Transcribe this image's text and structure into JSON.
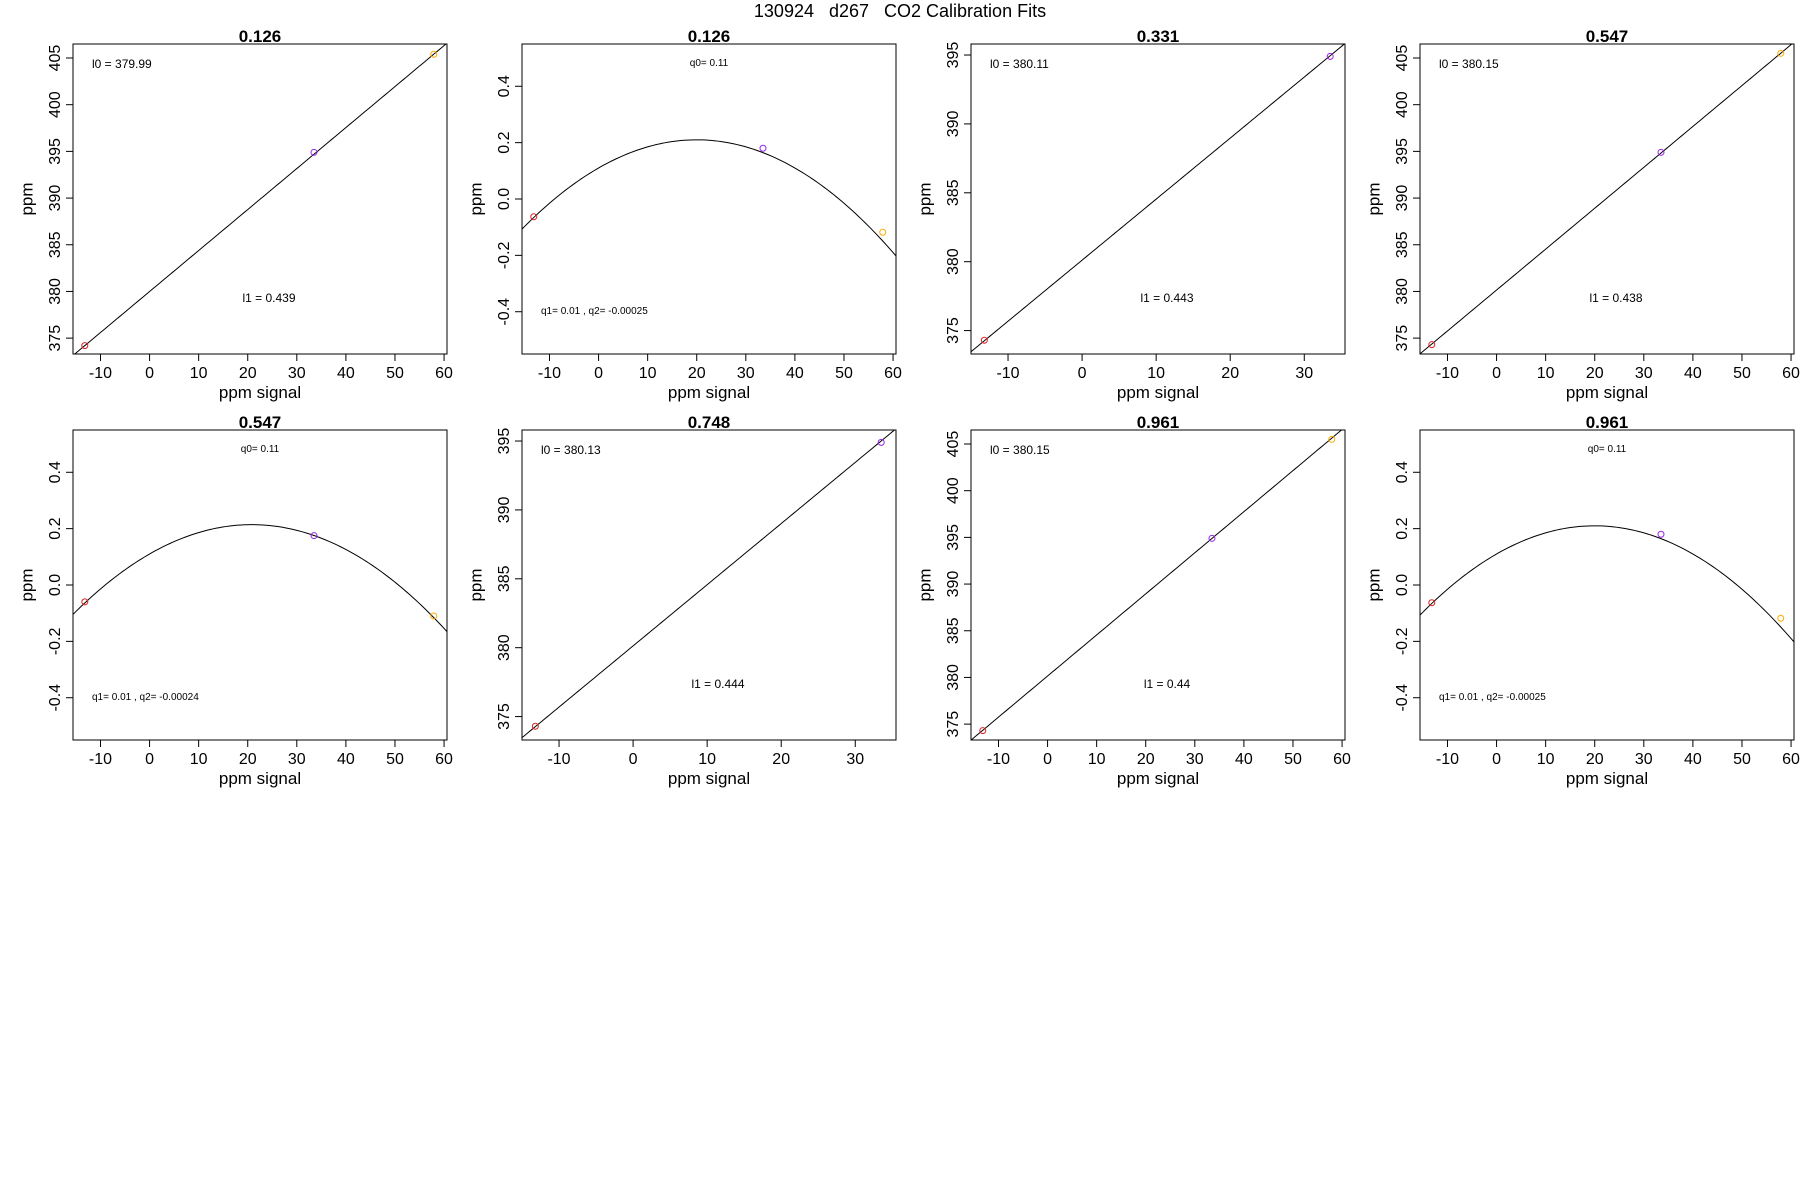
{
  "page": {
    "title": "130924   d267   CO2 Calibration Fits"
  },
  "colors": {
    "red": "#dd2222",
    "purple": "#9922ee",
    "orange": "#ffaa00",
    "line": "#000000"
  },
  "chart_data": [
    {
      "type": "scatter",
      "title": "0.126",
      "xlabel": "ppm signal",
      "ylabel": "ppm",
      "xlim": [
        -15.6,
        60.6
      ],
      "ylim": [
        373.3,
        406.5
      ],
      "xticks": [
        "-10",
        "0",
        "10",
        "20",
        "30",
        "40",
        "50",
        "60"
      ],
      "yticks": [
        "375",
        "380",
        "385",
        "390",
        "395",
        "400",
        "405"
      ],
      "fit": {
        "kind": "linear",
        "b0": 379.99,
        "b1": 0.439
      },
      "annotations": [
        "l0 =  379.99",
        "l1 =  0.439"
      ],
      "points": [
        {
          "x": -13.2,
          "y": 374.2,
          "color": "red"
        },
        {
          "x": 33.5,
          "y": 394.9,
          "color": "purple"
        },
        {
          "x": 57.9,
          "y": 405.4,
          "color": "orange"
        }
      ]
    },
    {
      "type": "scatter",
      "title": "0.126",
      "xlabel": "ppm signal",
      "ylabel": "ppm",
      "xlim": [
        -15.6,
        60.6
      ],
      "ylim": [
        -0.55,
        0.55
      ],
      "xticks": [
        "-10",
        "0",
        "10",
        "20",
        "30",
        "40",
        "50",
        "60"
      ],
      "yticks": [
        "-0.4",
        "-0.2",
        "0.0",
        "0.2",
        "0.4"
      ],
      "fit": {
        "kind": "quadratic",
        "q0": 0.11,
        "q1": 0.01,
        "q2": -0.00025
      },
      "annotations": [
        "q0= 0.11",
        "q1= 0.01 , q2= -0.00025"
      ],
      "points": [
        {
          "x": -13.2,
          "y": -0.063,
          "color": "red"
        },
        {
          "x": 33.5,
          "y": 0.18,
          "color": "purple"
        },
        {
          "x": 57.9,
          "y": -0.118,
          "color": "orange"
        }
      ]
    },
    {
      "type": "scatter",
      "title": "0.331",
      "xlabel": "ppm signal",
      "ylabel": "ppm",
      "xlim": [
        -15.0,
        35.5
      ],
      "ylim": [
        373.3,
        395.8
      ],
      "xticks": [
        "-10",
        "0",
        "10",
        "20",
        "30"
      ],
      "yticks": [
        "375",
        "380",
        "385",
        "390",
        "395"
      ],
      "fit": {
        "kind": "linear",
        "b0": 380.11,
        "b1": 0.443
      },
      "annotations": [
        "l0 =  380.11",
        "l1 =  0.443"
      ],
      "points": [
        {
          "x": -13.2,
          "y": 374.3,
          "color": "red"
        },
        {
          "x": 33.5,
          "y": 394.9,
          "color": "purple"
        }
      ]
    },
    {
      "type": "scatter",
      "title": "0.547",
      "xlabel": "ppm signal",
      "ylabel": "ppm",
      "xlim": [
        -15.6,
        60.6
      ],
      "ylim": [
        373.3,
        406.5
      ],
      "xticks": [
        "-10",
        "0",
        "10",
        "20",
        "30",
        "40",
        "50",
        "60"
      ],
      "yticks": [
        "375",
        "380",
        "385",
        "390",
        "395",
        "400",
        "405"
      ],
      "fit": {
        "kind": "linear",
        "b0": 380.15,
        "b1": 0.438
      },
      "annotations": [
        "l0 =  380.15",
        "l1 =  0.438"
      ],
      "points": [
        {
          "x": -13.2,
          "y": 374.3,
          "color": "red"
        },
        {
          "x": 33.5,
          "y": 394.9,
          "color": "purple"
        },
        {
          "x": 57.9,
          "y": 405.5,
          "color": "orange"
        }
      ]
    },
    {
      "type": "scatter",
      "title": "0.547",
      "xlabel": "ppm signal",
      "ylabel": "ppm",
      "xlim": [
        -15.6,
        60.6
      ],
      "ylim": [
        -0.55,
        0.55
      ],
      "xticks": [
        "-10",
        "0",
        "10",
        "20",
        "30",
        "40",
        "50",
        "60"
      ],
      "yticks": [
        "-0.4",
        "-0.2",
        "0.0",
        "0.2",
        "0.4"
      ],
      "fit": {
        "kind": "quadratic",
        "q0": 0.11,
        "q1": 0.01,
        "q2": -0.00024
      },
      "annotations": [
        "q0= 0.11",
        "q1= 0.01 , q2= -0.00024"
      ],
      "points": [
        {
          "x": -13.2,
          "y": -0.06,
          "color": "red"
        },
        {
          "x": 33.5,
          "y": 0.175,
          "color": "purple"
        },
        {
          "x": 57.9,
          "y": -0.11,
          "color": "orange"
        }
      ]
    },
    {
      "type": "scatter",
      "title": "0.748",
      "xlabel": "ppm signal",
      "ylabel": "ppm",
      "xlim": [
        -15.0,
        35.5
      ],
      "ylim": [
        373.3,
        395.8
      ],
      "xticks": [
        "-10",
        "0",
        "10",
        "20",
        "30"
      ],
      "yticks": [
        "375",
        "380",
        "385",
        "390",
        "395"
      ],
      "fit": {
        "kind": "linear",
        "b0": 380.13,
        "b1": 0.444
      },
      "annotations": [
        "l0 =  380.13",
        "l1 =  0.444"
      ],
      "points": [
        {
          "x": -13.2,
          "y": 374.3,
          "color": "red"
        },
        {
          "x": 33.5,
          "y": 394.9,
          "color": "purple"
        }
      ]
    },
    {
      "type": "scatter",
      "title": "0.961",
      "xlabel": "ppm signal",
      "ylabel": "ppm",
      "xlim": [
        -15.6,
        60.6
      ],
      "ylim": [
        373.3,
        406.5
      ],
      "xticks": [
        "-10",
        "0",
        "10",
        "20",
        "30",
        "40",
        "50",
        "60"
      ],
      "yticks": [
        "375",
        "380",
        "385",
        "390",
        "395",
        "400",
        "405"
      ],
      "fit": {
        "kind": "linear",
        "b0": 380.15,
        "b1": 0.44
      },
      "annotations": [
        "l0 =  380.15",
        "l1 =  0.44"
      ],
      "points": [
        {
          "x": -13.2,
          "y": 374.3,
          "color": "red"
        },
        {
          "x": 33.5,
          "y": 394.9,
          "color": "purple"
        },
        {
          "x": 57.9,
          "y": 405.5,
          "color": "orange"
        }
      ]
    },
    {
      "type": "scatter",
      "title": "0.961",
      "xlabel": "ppm signal",
      "ylabel": "ppm",
      "xlim": [
        -15.6,
        60.6
      ],
      "ylim": [
        -0.55,
        0.55
      ],
      "xticks": [
        "-10",
        "0",
        "10",
        "20",
        "30",
        "40",
        "50",
        "60"
      ],
      "yticks": [
        "-0.4",
        "-0.2",
        "0.0",
        "0.2",
        "0.4"
      ],
      "fit": {
        "kind": "quadratic",
        "q0": 0.11,
        "q1": 0.01,
        "q2": -0.00025
      },
      "annotations": [
        "q0= 0.11",
        "q1= 0.01 , q2= -0.00025"
      ],
      "points": [
        {
          "x": -13.2,
          "y": -0.063,
          "color": "red"
        },
        {
          "x": 33.5,
          "y": 0.18,
          "color": "purple"
        },
        {
          "x": 57.9,
          "y": -0.118,
          "color": "orange"
        }
      ]
    }
  ]
}
